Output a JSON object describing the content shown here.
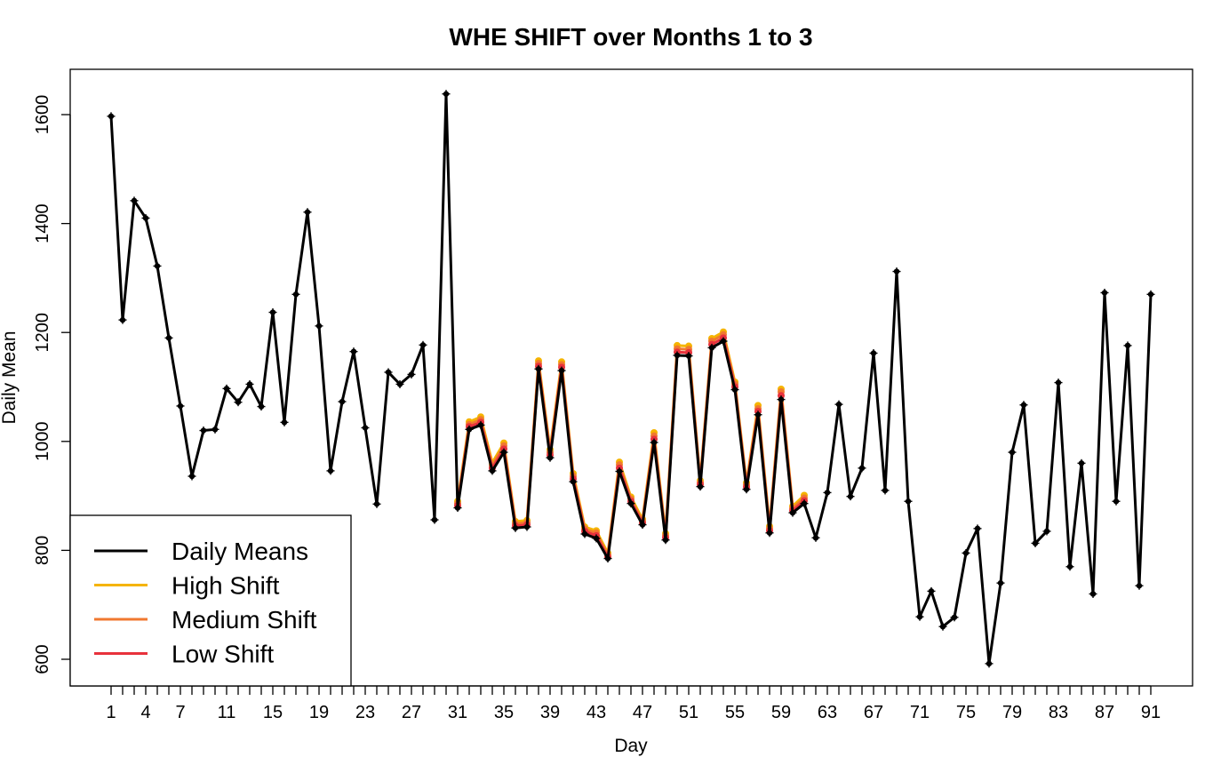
{
  "chart_data": {
    "type": "line",
    "title": "WHE SHIFT over Months 1 to 3",
    "xlabel": "Day",
    "ylabel": "Daily Mean",
    "xlim": [
      1,
      91
    ],
    "ylim": [
      555,
      1665
    ],
    "x_tick_labels": [
      1,
      4,
      7,
      11,
      15,
      19,
      23,
      27,
      31,
      35,
      39,
      43,
      47,
      51,
      55,
      59,
      63,
      67,
      71,
      75,
      79,
      83,
      87,
      91
    ],
    "y_tick_labels": [
      600,
      800,
      1000,
      1200,
      1400,
      1600
    ],
    "legend_position": "bottom-left",
    "colors": {
      "daily_means": "#000000",
      "high_shift": "#F5B400",
      "medium_shift": "#F07830",
      "low_shift": "#E8323C"
    },
    "series": [
      {
        "name": "Daily Means",
        "color": "#000000",
        "x": [
          1,
          2,
          3,
          4,
          5,
          6,
          7,
          8,
          9,
          10,
          11,
          12,
          13,
          14,
          15,
          16,
          17,
          18,
          19,
          20,
          21,
          22,
          23,
          24,
          25,
          26,
          27,
          28,
          29,
          30,
          31,
          32,
          33,
          34,
          35,
          36,
          37,
          38,
          39,
          40,
          41,
          42,
          43,
          44,
          45,
          46,
          47,
          48,
          49,
          50,
          51,
          52,
          53,
          54,
          55,
          56,
          57,
          58,
          59,
          60,
          61,
          62,
          63,
          64,
          65,
          66,
          67,
          68,
          69,
          70,
          71,
          72,
          73,
          74,
          75,
          76,
          77,
          78,
          79,
          80,
          81,
          82,
          83,
          84,
          85,
          86,
          87,
          88,
          89,
          90,
          91
        ],
        "y": [
          1597,
          1223,
          1442,
          1410,
          1322,
          1190,
          1065,
          936,
          1020,
          1022,
          1097,
          1072,
          1105,
          1064,
          1237,
          1035,
          1270,
          1421,
          1212,
          946,
          1073,
          1165,
          1025,
          885,
          1127,
          1105,
          1123,
          1177,
          856,
          1638,
          878,
          1022,
          1030,
          946,
          980,
          841,
          843,
          1133,
          970,
          1130,
          926,
          830,
          822,
          785,
          945,
          886,
          847,
          998,
          819,
          1158,
          1157,
          917,
          1172,
          1184,
          1095,
          912,
          1049,
          832,
          1077,
          869,
          886,
          823,
          906,
          1068,
          899,
          951,
          1162,
          910,
          1312,
          890,
          678,
          725,
          660,
          677,
          795,
          840,
          592,
          740,
          980,
          1067,
          813,
          835,
          1108,
          770,
          960,
          720,
          1273,
          890,
          1176,
          735,
          1270
        ]
      },
      {
        "name": "High Shift",
        "color": "#F5B400",
        "x": [
          31,
          32,
          33,
          34,
          35,
          36,
          37,
          38,
          39,
          40,
          41,
          42,
          43,
          44,
          45,
          46,
          47,
          48,
          49,
          50,
          51,
          52,
          53,
          54,
          55,
          56,
          57,
          58,
          59,
          60,
          61
        ],
        "y": [
          890,
          1036,
          1045,
          961,
          997,
          853,
          855,
          1148,
          985,
          1146,
          941,
          843,
          836,
          795,
          962,
          898,
          857,
          1016,
          831,
          1176,
          1175,
          928,
          1189,
          1201,
          1109,
          924,
          1066,
          844,
          1096,
          881,
          901
        ]
      },
      {
        "name": "Medium Shift",
        "color": "#F07830",
        "x": [
          31,
          32,
          33,
          34,
          35,
          36,
          37,
          38,
          39,
          40,
          41,
          42,
          43,
          44,
          45,
          46,
          47,
          48,
          49,
          50,
          51,
          52,
          53,
          54,
          55,
          56,
          57,
          58,
          59,
          60,
          61
        ],
        "y": [
          886,
          1031,
          1040,
          956,
          992,
          849,
          851,
          1143,
          980,
          1141,
          936,
          839,
          832,
          791,
          957,
          894,
          853,
          1010,
          827,
          1170,
          1169,
          924,
          1184,
          1196,
          1105,
          920,
          1060,
          840,
          1091,
          877,
          896
        ]
      },
      {
        "name": "Low Shift",
        "color": "#E8323C",
        "x": [
          31,
          32,
          33,
          34,
          35,
          36,
          37,
          38,
          39,
          40,
          41,
          42,
          43,
          44,
          45,
          46,
          47,
          48,
          49,
          50,
          51,
          52,
          53,
          54,
          55,
          56,
          57,
          58,
          59,
          60,
          61
        ],
        "y": [
          882,
          1027,
          1035,
          951,
          986,
          845,
          847,
          1138,
          975,
          1136,
          931,
          835,
          827,
          788,
          951,
          890,
          850,
          1004,
          823,
          1164,
          1163,
          921,
          1178,
          1190,
          1100,
          916,
          1055,
          836,
          1084,
          873,
          891
        ]
      }
    ]
  }
}
